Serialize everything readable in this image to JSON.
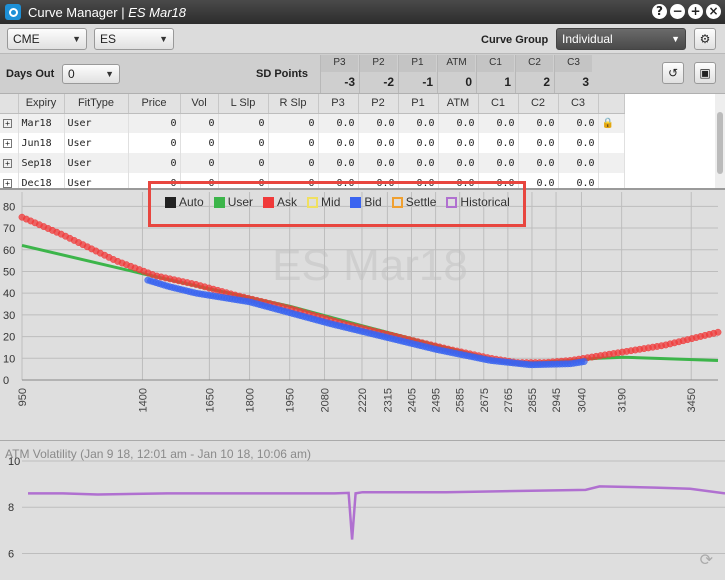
{
  "window": {
    "title": "Curve Manager | ",
    "title_italic": "ES Mar18",
    "buttons": [
      "?",
      "−",
      "+",
      "×"
    ]
  },
  "toolbar": {
    "exchange": "CME",
    "product": "ES",
    "curve_group_label": "Curve Group",
    "curve_group_value": "Individual",
    "settings_icon": "gear-icon"
  },
  "sd_points": {
    "days_out_label": "Days Out",
    "days_out_value": "0",
    "label": "SD Points",
    "columns": [
      {
        "h": "P3",
        "v": "-3"
      },
      {
        "h": "P2",
        "v": "-2"
      },
      {
        "h": "P1",
        "v": "-1"
      },
      {
        "h": "ATM",
        "v": "0"
      },
      {
        "h": "C1",
        "v": "1"
      },
      {
        "h": "C2",
        "v": "2"
      },
      {
        "h": "C3",
        "v": "3"
      }
    ]
  },
  "grid": {
    "headers": [
      "",
      "Expiry",
      "FitType",
      "Price",
      "Vol",
      "L Slp",
      "R Slp",
      "P3",
      "P2",
      "P1",
      "ATM",
      "C1",
      "C2",
      "C3",
      ""
    ],
    "rows": [
      [
        "Mar18",
        "User",
        "0",
        "0",
        "0",
        "0",
        "0.0",
        "0.0",
        "0.0",
        "0.0",
        "0.0",
        "0.0",
        "0.0"
      ],
      [
        "Jun18",
        "User",
        "0",
        "0",
        "0",
        "0",
        "0.0",
        "0.0",
        "0.0",
        "0.0",
        "0.0",
        "0.0",
        "0.0"
      ],
      [
        "Sep18",
        "User",
        "0",
        "0",
        "0",
        "0",
        "0.0",
        "0.0",
        "0.0",
        "0.0",
        "0.0",
        "0.0",
        "0.0"
      ],
      [
        "Dec18",
        "User",
        "0",
        "0",
        "0",
        "0",
        "0.0",
        "0.0",
        "0.0",
        "0.0",
        "0.0",
        "0.0",
        "0.0"
      ]
    ]
  },
  "legend": [
    {
      "name": "Auto",
      "color": "#222222",
      "hollow": false
    },
    {
      "name": "User",
      "color": "#3cb54a",
      "hollow": false
    },
    {
      "name": "Ask",
      "color": "#f03a3a",
      "hollow": false
    },
    {
      "name": "Mid",
      "color": "#f0e060",
      "hollow": true
    },
    {
      "name": "Bid",
      "color": "#3a64f0",
      "hollow": false
    },
    {
      "name": "Settle",
      "color": "#f0a030",
      "hollow": true
    },
    {
      "name": "Historical",
      "color": "#b070d0",
      "hollow": true
    }
  ],
  "chart_data": [
    {
      "type": "scatter",
      "title": "",
      "watermark": "ES Mar18",
      "xlabel": "",
      "ylabel": "",
      "xlim": [
        950,
        3550
      ],
      "ylim": [
        0,
        82
      ],
      "yticks": [
        0,
        10,
        20,
        30,
        40,
        50,
        60,
        70,
        80
      ],
      "xticks": [
        950,
        1400,
        1650,
        1800,
        1950,
        2080,
        2220,
        2315,
        2405,
        2495,
        2585,
        2675,
        2765,
        2855,
        2945,
        3040,
        3190,
        3450
      ],
      "series": [
        {
          "name": "User",
          "kind": "line",
          "color": "#3cb54a",
          "x": [
            950,
            1400,
            1650,
            1950,
            2220,
            2500,
            2760,
            2860,
            3000,
            3100,
            3200,
            3550
          ],
          "y": [
            62,
            49,
            42,
            34,
            25,
            16,
            8,
            8,
            9,
            10,
            10.5,
            9
          ]
        },
        {
          "name": "Ask",
          "kind": "points",
          "color": "#f03a3a",
          "x": [
            950,
            1100,
            1300,
            1450,
            1600,
            1750,
            1950,
            2150,
            2350,
            2550,
            2700,
            2800,
            2900,
            3000,
            3100,
            3200,
            3350,
            3550
          ],
          "y": [
            75,
            67,
            55,
            48,
            44,
            39,
            33,
            26,
            20,
            14,
            10,
            8,
            8,
            9,
            11,
            13,
            16,
            22
          ]
        },
        {
          "name": "Bid",
          "kind": "points",
          "color": "#3a64f0",
          "x": [
            1420,
            1500,
            1600,
            1700,
            1800,
            1950,
            2100,
            2300,
            2500,
            2700,
            2850,
            3000,
            3050
          ],
          "y": [
            46,
            43,
            40,
            38,
            36,
            31,
            26,
            20,
            14,
            9,
            7,
            7.5,
            8.5
          ]
        }
      ]
    },
    {
      "type": "line",
      "title": "ATM Volatility (Jan 9 18, 12:01 am - Jan 10 18, 10:06 am)",
      "ylim": [
        5.5,
        10
      ],
      "yticks": [
        6,
        8,
        10
      ],
      "series": [
        {
          "name": "Historical",
          "color": "#b070d0",
          "x": [
            0,
            0.05,
            0.1,
            0.2,
            0.3,
            0.44,
            0.46,
            0.465,
            0.47,
            0.48,
            0.6,
            0.7,
            0.8,
            0.82,
            0.9,
            0.95,
            1.0
          ],
          "y": [
            8.6,
            8.6,
            8.55,
            8.6,
            8.6,
            8.6,
            8.62,
            6.6,
            8.6,
            8.65,
            8.65,
            8.7,
            8.75,
            8.9,
            8.85,
            8.8,
            8.6
          ]
        }
      ]
    }
  ]
}
